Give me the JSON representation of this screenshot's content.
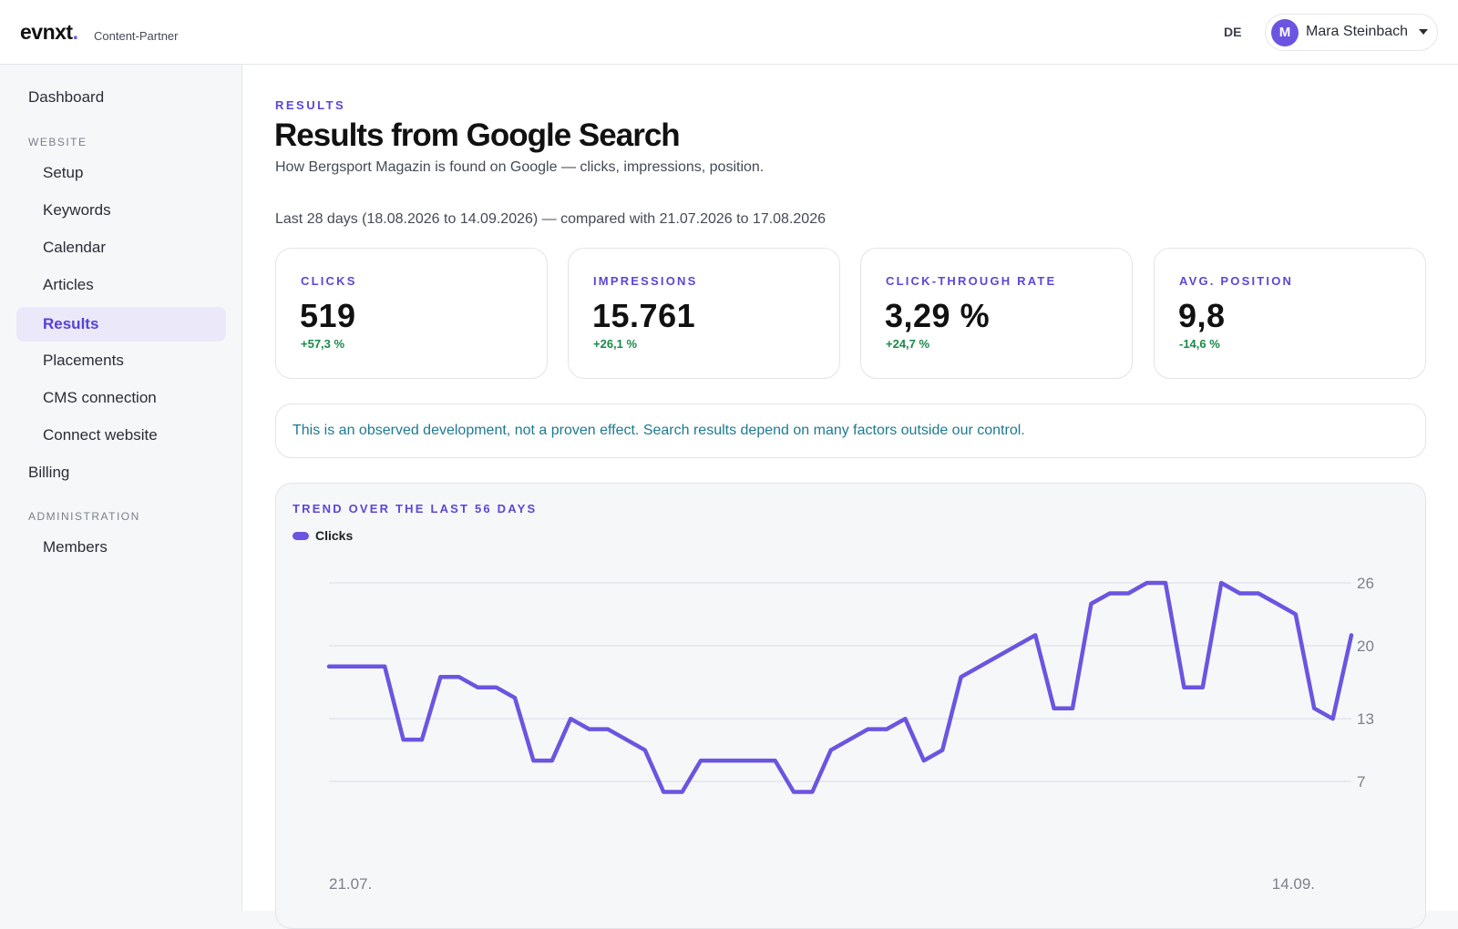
{
  "header": {
    "logo": "evnxt",
    "logo_dot": ".",
    "logo_sub": "Content-Partner",
    "language": "DE",
    "user": {
      "initial": "M",
      "name": "Mara Steinbach"
    }
  },
  "sidebar": {
    "dashboard": "Dashboard",
    "section_website": "WEBSITE",
    "website_items": [
      "Setup",
      "Keywords",
      "Calendar",
      "Articles",
      "Results",
      "Placements",
      "CMS connection",
      "Connect website"
    ],
    "active_item": "Results",
    "billing": "Billing",
    "section_admin": "ADMINISTRATION",
    "admin_items": [
      "Members"
    ]
  },
  "main": {
    "eyebrow": "RESULTS",
    "title": "Results from Google Search",
    "description": "How Bergsport Magazin is found on Google — clicks, impressions, position.",
    "date_range": "Last 28 days (18.08.2026 to 14.09.2026) — compared with 21.07.2026 to 17.08.2026",
    "kpis": [
      {
        "label": "CLICKS",
        "value": "519",
        "delta": "+57,3 %"
      },
      {
        "label": "IMPRESSIONS",
        "value": "15.761",
        "delta": "+26,1 %"
      },
      {
        "label": "CLICK-THROUGH RATE",
        "value": "3,29 %",
        "delta": "+24,7 %"
      },
      {
        "label": "AVG. POSITION",
        "value": "9,8",
        "delta": "-14,6 %"
      }
    ],
    "notice": "This is an observed development, not a proven effect. Search results depend on many factors outside our control."
  },
  "colors": {
    "accent": "#6b55e0",
    "positive": "#178a4a",
    "notice": "#1d7a93"
  },
  "chart_data": {
    "type": "line",
    "title": "TREND OVER THE LAST 56 DAYS",
    "x_start_label": "21.07.",
    "x_end_label": "14.09.",
    "y_ticks": [
      7,
      13,
      20,
      26
    ],
    "ylim": [
      7,
      26
    ],
    "grid": true,
    "legend": "top-left",
    "series": [
      {
        "name": "Clicks",
        "color": "#6b55e0",
        "values": [
          18,
          18,
          18,
          18,
          11,
          11,
          17,
          17,
          16,
          16,
          15,
          9,
          9,
          13,
          12,
          12,
          11,
          10,
          6,
          6,
          9,
          9,
          9,
          9,
          9,
          6,
          6,
          10,
          11,
          12,
          12,
          13,
          9,
          10,
          17,
          18,
          19,
          20,
          21,
          14,
          14,
          24,
          25,
          25,
          26,
          26,
          16,
          16,
          26,
          25,
          25,
          24,
          23,
          14,
          13,
          21
        ]
      }
    ]
  }
}
